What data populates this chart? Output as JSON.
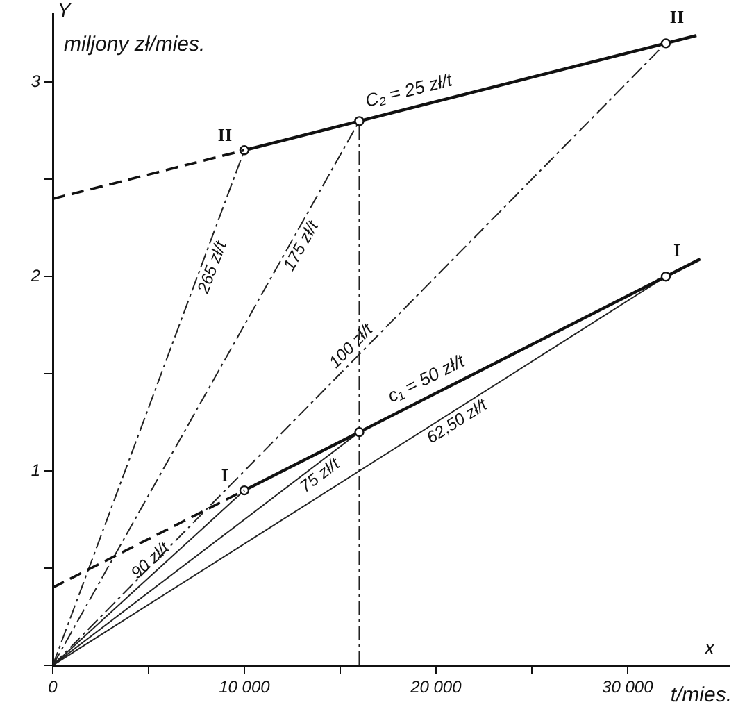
{
  "chart_data": {
    "type": "line",
    "xlabel": "t/mies.",
    "ylabel": "miljony zł/mies.",
    "xlim": [
      0,
      35300
    ],
    "ylim": [
      0,
      3.35
    ],
    "xticks": [
      {
        "value": 0,
        "label": "0"
      },
      {
        "value": 5000,
        "label": null
      },
      {
        "value": 10000,
        "label": "10 000"
      },
      {
        "value": 15000,
        "label": null
      },
      {
        "value": 20000,
        "label": "20 000"
      },
      {
        "value": 25000,
        "label": null
      },
      {
        "value": 30000,
        "label": "30 000"
      }
    ],
    "yticks": [
      {
        "value": 0,
        "label": null
      },
      {
        "value": 0.5,
        "label": null
      },
      1,
      {
        "value": 1.5,
        "label": null
      },
      2,
      {
        "value": 2.5,
        "label": null
      },
      3
    ],
    "grid": false,
    "legend": false,
    "series": [
      {
        "x": [
          0,
          10000
        ],
        "values": [
          2.4,
          2.65
        ],
        "color": "#111111",
        "line_style": "dashed"
      },
      {
        "name": "II",
        "x": [
          10000,
          16000,
          32000
        ],
        "values": [
          2.65,
          2.8,
          3.2
        ],
        "color": "#111111",
        "line_style": "solid",
        "marker": "circle"
      },
      {
        "x": [
          32000,
          33600
        ],
        "values": [
          3.2,
          3.24
        ],
        "color": "#111111",
        "line_style": "solid",
        "marker": "none"
      },
      {
        "x": [
          0,
          10000
        ],
        "values": [
          0.4,
          0.9
        ],
        "color": "#111111",
        "line_style": "dashed"
      },
      {
        "name": "I",
        "x": [
          10000,
          16000,
          32000
        ],
        "values": [
          0.9,
          1.2,
          2.0
        ],
        "color": "#111111",
        "line_style": "solid",
        "marker": "circle"
      },
      {
        "x": [
          32000,
          33800
        ],
        "values": [
          2.0,
          2.09
        ],
        "color": "#111111",
        "line_style": "solid",
        "marker": "none"
      },
      {
        "name": "265 zł/t",
        "x": [
          0,
          10000
        ],
        "values": [
          0,
          2.65
        ],
        "color": "#222222",
        "line_style": "dashed",
        "marker": "none"
      },
      {
        "name": "175 zł/t",
        "x": [
          0,
          16000
        ],
        "values": [
          0,
          2.8
        ],
        "color": "#222222",
        "line_style": "dashed",
        "marker": "none"
      },
      {
        "name": "100 zł/t",
        "x": [
          0,
          32000
        ],
        "values": [
          0,
          3.2
        ],
        "color": "#222222",
        "line_style": "dashed",
        "marker": "none"
      },
      {
        "name": "90 zł/t",
        "x": [
          0,
          10000
        ],
        "values": [
          0,
          0.9
        ],
        "color": "#222222",
        "line_style": "solid",
        "marker": "none"
      },
      {
        "name": "75 zł/t",
        "x": [
          0,
          16000
        ],
        "values": [
          0,
          1.2
        ],
        "color": "#222222",
        "line_style": "solid",
        "marker": "none"
      },
      {
        "name": "62,50 zł/t",
        "x": [
          0,
          32000
        ],
        "values": [
          0,
          2.0
        ],
        "color": "#222222",
        "line_style": "solid",
        "marker": "none"
      },
      {
        "x": [
          16000,
          16000
        ],
        "values": [
          0,
          2.8
        ],
        "color": "#222222",
        "line_style": "dashed",
        "marker": "none"
      }
    ],
    "annotations": [
      "C₂ = 25 zł/t",
      "c₁ = 50 zł/t",
      "Y",
      "x"
    ]
  }
}
